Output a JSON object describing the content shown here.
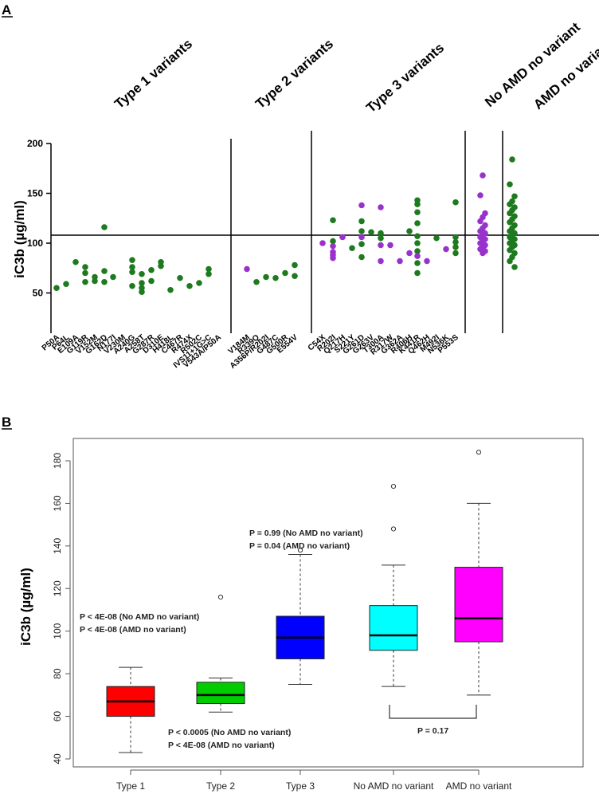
{
  "chart_data": [
    {
      "panel": "A",
      "type": "scatter",
      "ylabel": "iC3b (µg/ml)",
      "ylim": [
        40,
        205
      ],
      "yticks": [
        50,
        100,
        150,
        200
      ],
      "reference_line": 108,
      "colors": {
        "type1": "#1e7a1e",
        "type2": "#9932cc",
        "type3_green": "#1e7a1e",
        "type3_purple": "#9932cc",
        "no_amd": "#9932cc",
        "amd": "#1e7a1e"
      },
      "groups": [
        {
          "title": "Type 1 variants",
          "variants": [
            {
              "label": "P50A",
              "values": [
                55
              ],
              "color": "green"
            },
            {
              "label": "P64L",
              "values": [
                59
              ],
              "color": "green"
            },
            {
              "label": "E109A",
              "values": [
                81
              ],
              "color": "green"
            },
            {
              "label": "G119R",
              "values": [
                76,
                70,
                61
              ],
              "color": "green"
            },
            {
              "label": "V152M",
              "values": [
                66,
                62
              ],
              "color": "green"
            },
            {
              "label": "G162D",
              "values": [
                116,
                72,
                61
              ],
              "color": "green"
            },
            {
              "label": "N177I",
              "values": [
                66
              ],
              "color": "green"
            },
            {
              "label": "V230M",
              "values": [],
              "color": "green"
            },
            {
              "label": "A240G",
              "values": [
                83,
                76,
                71,
                57
              ],
              "color": "green"
            },
            {
              "label": "A258T",
              "values": [
                69,
                60,
                55,
                51
              ],
              "color": "green"
            },
            {
              "label": "G287R",
              "values": [
                73,
                62
              ],
              "color": "green"
            },
            {
              "label": "D310E",
              "values": [
                81,
                77
              ],
              "color": "green"
            },
            {
              "label": "H418L",
              "values": [
                53
              ],
              "color": "green"
            },
            {
              "label": "C467R",
              "values": [
                65
              ],
              "color": "green"
            },
            {
              "label": "R474X",
              "values": [
                57
              ],
              "color": "green"
            },
            {
              "label": "R502C",
              "values": [
                60
              ],
              "color": "green"
            },
            {
              "label": "IVS11+1G>C",
              "values": [
                74,
                69
              ],
              "color": "green"
            },
            {
              "label": "V543A/P50A",
              "values": [],
              "color": "green"
            }
          ]
        },
        {
          "title": "Type 2 variants",
          "variants": [
            {
              "label": "V184M",
              "values": [
                74
              ],
              "color": "purple"
            },
            {
              "label": "R339Q",
              "values": [
                61
              ],
              "color": "green"
            },
            {
              "label": "A356P/R202I",
              "values": [
                66
              ],
              "color": "green"
            },
            {
              "label": "G487C",
              "values": [
                65
              ],
              "color": "green"
            },
            {
              "label": "G500R",
              "values": [
                70
              ],
              "color": "green"
            },
            {
              "label": "E554V",
              "values": [
                78,
                67
              ],
              "color": "green"
            }
          ]
        },
        {
          "title": "Type 3 variants",
          "variants": [
            {
              "label": "C54X",
              "values": [
                100
              ],
              "color": "purple"
            },
            {
              "label": "R202I",
              "values": [
                123,
                102,
                97,
                91,
                88,
                85
              ],
              "color": "mixed"
            },
            {
              "label": "Q217H",
              "values": [
                106
              ],
              "color": "purple"
            },
            {
              "label": "S221Y",
              "values": [
                95
              ],
              "color": "green"
            },
            {
              "label": "G261D",
              "values": [
                138,
                122,
                112,
                106,
                99,
                86
              ],
              "color": "mixed"
            },
            {
              "label": "G263V",
              "values": [
                111
              ],
              "color": "green"
            },
            {
              "label": "T300A",
              "values": [
                136,
                110,
                105,
                98,
                82
              ],
              "color": "mixed"
            },
            {
              "label": "R317W",
              "values": [
                98
              ],
              "color": "purple"
            },
            {
              "label": "G362A",
              "values": [
                82
              ],
              "color": "purple"
            },
            {
              "label": "R406H",
              "values": [
                112,
                90
              ],
              "color": "mixed"
            },
            {
              "label": "K441R",
              "values": [
                143,
                139,
                131,
                120,
                107,
                100,
                92,
                87,
                80,
                70
              ],
              "color": "mixed"
            },
            {
              "label": "Q462H",
              "values": [
                82
              ],
              "color": "purple"
            },
            {
              "label": "M492I",
              "values": [
                105
              ],
              "color": "green"
            },
            {
              "label": "N536K",
              "values": [
                94
              ],
              "color": "purple"
            },
            {
              "label": "P553S",
              "values": [
                141,
                106,
                101,
                96,
                90
              ],
              "color": "green"
            }
          ]
        },
        {
          "title": "No AMD no variant",
          "variants": [
            {
              "label": "",
              "values": [
                168,
                148,
                130,
                126,
                122,
                118,
                115,
                112,
                110,
                108,
                106,
                104,
                102,
                100,
                98,
                96,
                94,
                92,
                90
              ],
              "color": "purple"
            }
          ]
        },
        {
          "title": "AMD no variant",
          "variants": [
            {
              "label": "",
              "values": [
                184,
                159,
                147,
                142,
                139,
                136,
                133,
                130,
                127,
                124,
                121,
                118,
                115,
                112,
                110,
                108,
                106,
                104,
                102,
                100,
                98,
                96,
                93,
                90,
                86,
                82,
                76
              ],
              "color": "green"
            }
          ]
        }
      ]
    },
    {
      "panel": "B",
      "type": "box",
      "ylabel": "iC3b (µg/ml)",
      "ylim": [
        38,
        190
      ],
      "yticks": [
        40,
        60,
        80,
        100,
        120,
        140,
        160,
        180
      ],
      "categories": [
        "Type 1",
        "Type 2",
        "Type 3",
        "No AMD no variant",
        "AMD no variant"
      ],
      "boxes": [
        {
          "name": "Type 1",
          "whisker_low": 43,
          "q1": 60,
          "median": 67,
          "q3": 74,
          "whisker_high": 83,
          "outliers": [],
          "color": "#ff0000"
        },
        {
          "name": "Type 2",
          "whisker_low": 62,
          "q1": 66,
          "median": 70,
          "q3": 76,
          "whisker_high": 78,
          "outliers": [
            116
          ],
          "color": "#00cc00"
        },
        {
          "name": "Type 3",
          "whisker_low": 75,
          "q1": 87,
          "median": 97,
          "q3": 107,
          "whisker_high": 136,
          "outliers": [
            138
          ],
          "color": "#0000ff"
        },
        {
          "name": "No AMD no variant",
          "whisker_low": 74,
          "q1": 91,
          "median": 98,
          "q3": 112,
          "whisker_high": 131,
          "outliers": [
            148,
            168
          ],
          "color": "#00ffff"
        },
        {
          "name": "AMD no variant",
          "whisker_low": 70,
          "q1": 95,
          "median": 106,
          "q3": 130,
          "whisker_high": 160,
          "outliers": [
            184
          ],
          "color": "#ff00ff"
        }
      ],
      "annotations": {
        "type1": [
          "P < 4E-08 (No AMD no variant)",
          "P < 4E-08 (AMD no variant)"
        ],
        "type2": [
          "P < 0.0005 (No AMD no variant)",
          "P < 4E-08   (AMD no variant)"
        ],
        "type3": [
          "P = 0.99  (No AMD no variant)",
          "P = 0.04  (AMD no variant)"
        ],
        "bracket": "P = 0.17"
      }
    }
  ]
}
